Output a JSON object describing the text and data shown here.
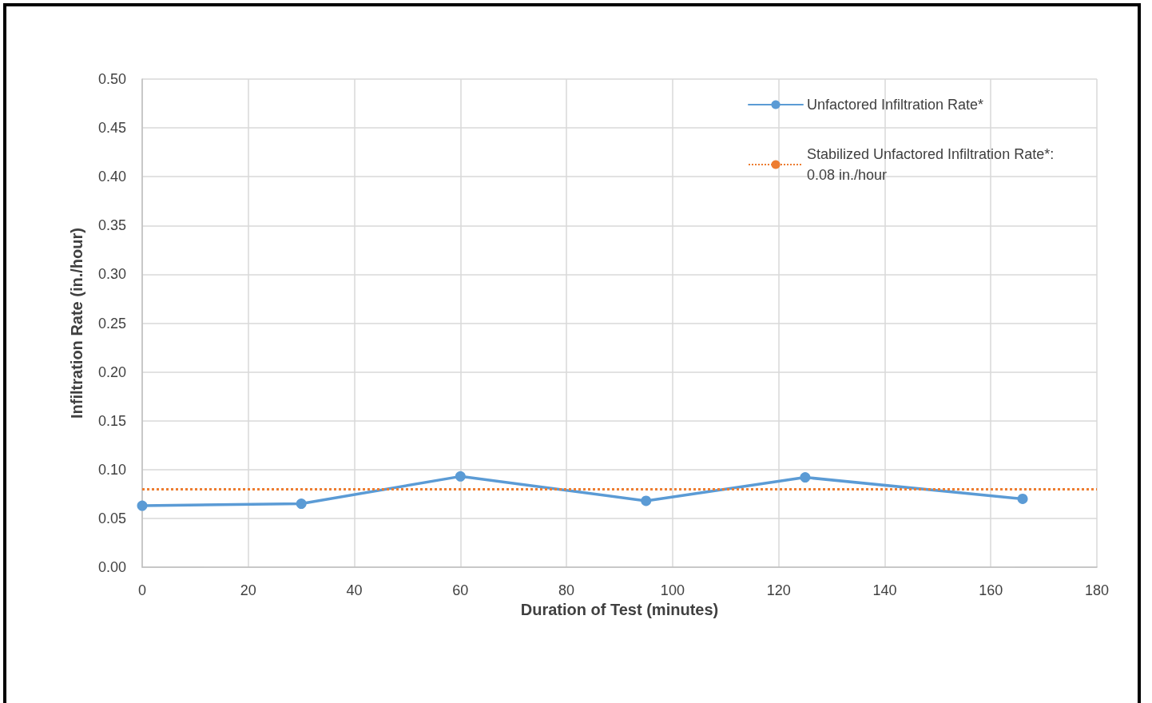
{
  "chart_data": {
    "type": "line",
    "xlabel": "Duration of Test (minutes)",
    "ylabel": "Infiltration Rate (in./hour)",
    "x": [
      0,
      30,
      60,
      95,
      125,
      166
    ],
    "series": [
      {
        "name": "Unfactored Infiltration Rate*",
        "color": "#5b9bd5",
        "values": [
          0.063,
          0.065,
          0.093,
          0.068,
          0.092,
          0.07
        ]
      }
    ],
    "ref_lines": [
      {
        "axis": "y",
        "value": 0.08,
        "label": "Stabilized Unfactored Infiltration Rate*: 0.08 in./hour",
        "color": "#ed7d31",
        "line_style": "dotted"
      }
    ],
    "xlim": [
      0,
      180
    ],
    "xticks": [
      0,
      20,
      40,
      60,
      80,
      100,
      120,
      140,
      160,
      180
    ],
    "ylim": [
      0,
      0.5
    ],
    "yticks": [
      {
        "value": 0,
        "label": "0.00"
      },
      {
        "value": 0.05,
        "label": "0.05"
      },
      {
        "value": 0.1,
        "label": "0.10"
      },
      {
        "value": 0.15,
        "label": "0.15"
      },
      {
        "value": 0.2,
        "label": "0.20"
      },
      {
        "value": 0.25,
        "label": "0.25"
      },
      {
        "value": 0.3,
        "label": "0.30"
      },
      {
        "value": 0.35,
        "label": "0.35"
      },
      {
        "value": 0.4,
        "label": "0.40"
      },
      {
        "value": 0.45,
        "label": "0.45"
      },
      {
        "value": 0.5,
        "label": "0.50"
      }
    ],
    "grid": true,
    "legend": "top right",
    "marker": "circle",
    "line_style": "solid"
  }
}
